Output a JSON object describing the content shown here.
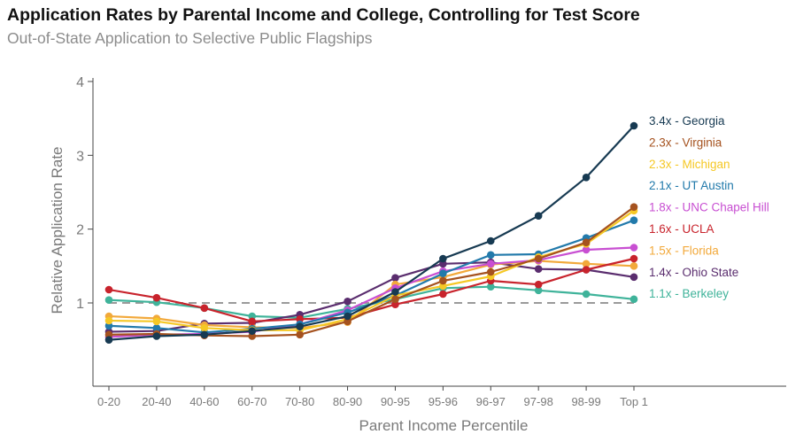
{
  "chart_data": {
    "type": "line",
    "title": "Application Rates by Parental Income and College, Controlling for Test Score",
    "subtitle": "Out-of-State Application to Selective Public Flagships",
    "xlabel": "Parent Income Percentile",
    "ylabel": "Relative Application Rate",
    "categories": [
      "0-20",
      "20-40",
      "40-60",
      "60-70",
      "70-80",
      "80-90",
      "90-95",
      "95-96",
      "96-97",
      "97-98",
      "98-99",
      "Top 1"
    ],
    "ylim": [
      0,
      4
    ],
    "yticks": [
      "1",
      "2",
      "3",
      "4"
    ],
    "reference_line": 1,
    "series": [
      {
        "name": "Georgia",
        "label": "3.4x - Georgia",
        "color": "#173a52",
        "values": [
          0.5,
          0.55,
          0.57,
          0.62,
          0.68,
          0.82,
          1.15,
          1.6,
          1.84,
          2.18,
          2.7,
          3.4
        ]
      },
      {
        "name": "Virginia",
        "label": "2.3x - Virginia",
        "color": "#a5521f",
        "values": [
          0.57,
          0.58,
          0.56,
          0.55,
          0.57,
          0.75,
          1.05,
          1.3,
          1.42,
          1.6,
          1.82,
          2.3
        ]
      },
      {
        "name": "Michigan",
        "label": "2.3x - Michigan",
        "color": "#f5c825",
        "values": [
          0.76,
          0.75,
          0.66,
          0.63,
          0.63,
          0.78,
          1.1,
          1.23,
          1.36,
          1.62,
          1.8,
          2.25
        ]
      },
      {
        "name": "UT Austin",
        "label": "2.1x - UT Austin",
        "color": "#227aab",
        "values": [
          0.69,
          0.66,
          0.6,
          0.65,
          0.71,
          0.87,
          1.1,
          1.4,
          1.65,
          1.66,
          1.88,
          2.12
        ]
      },
      {
        "name": "UNC Chapel Hill",
        "label": "1.8x - UNC Chapel Hill",
        "color": "#c84fd2",
        "values": [
          0.54,
          0.57,
          0.58,
          0.61,
          0.71,
          0.9,
          1.2,
          1.43,
          1.53,
          1.58,
          1.72,
          1.75
        ]
      },
      {
        "name": "UCLA",
        "label": "1.6x - UCLA",
        "color": "#c8232c",
        "values": [
          1.18,
          1.07,
          0.93,
          0.75,
          0.78,
          0.8,
          0.98,
          1.12,
          1.3,
          1.25,
          1.45,
          1.6
        ]
      },
      {
        "name": "Florida",
        "label": "1.5x - Florida",
        "color": "#f2a93b",
        "values": [
          0.82,
          0.79,
          0.7,
          0.67,
          0.66,
          0.74,
          1.25,
          1.35,
          1.52,
          1.57,
          1.53,
          1.5
        ]
      },
      {
        "name": "Ohio State",
        "label": "1.4x - Ohio State",
        "color": "#5a2d6e",
        "values": [
          0.61,
          0.62,
          0.72,
          0.73,
          0.84,
          1.02,
          1.34,
          1.53,
          1.55,
          1.46,
          1.45,
          1.35
        ]
      },
      {
        "name": "Berkeley",
        "label": "1.1x - Berkeley",
        "color": "#3fb39a",
        "values": [
          1.04,
          1.01,
          0.93,
          0.82,
          0.8,
          0.92,
          1.05,
          1.2,
          1.22,
          1.17,
          1.12,
          1.05
        ]
      }
    ]
  }
}
